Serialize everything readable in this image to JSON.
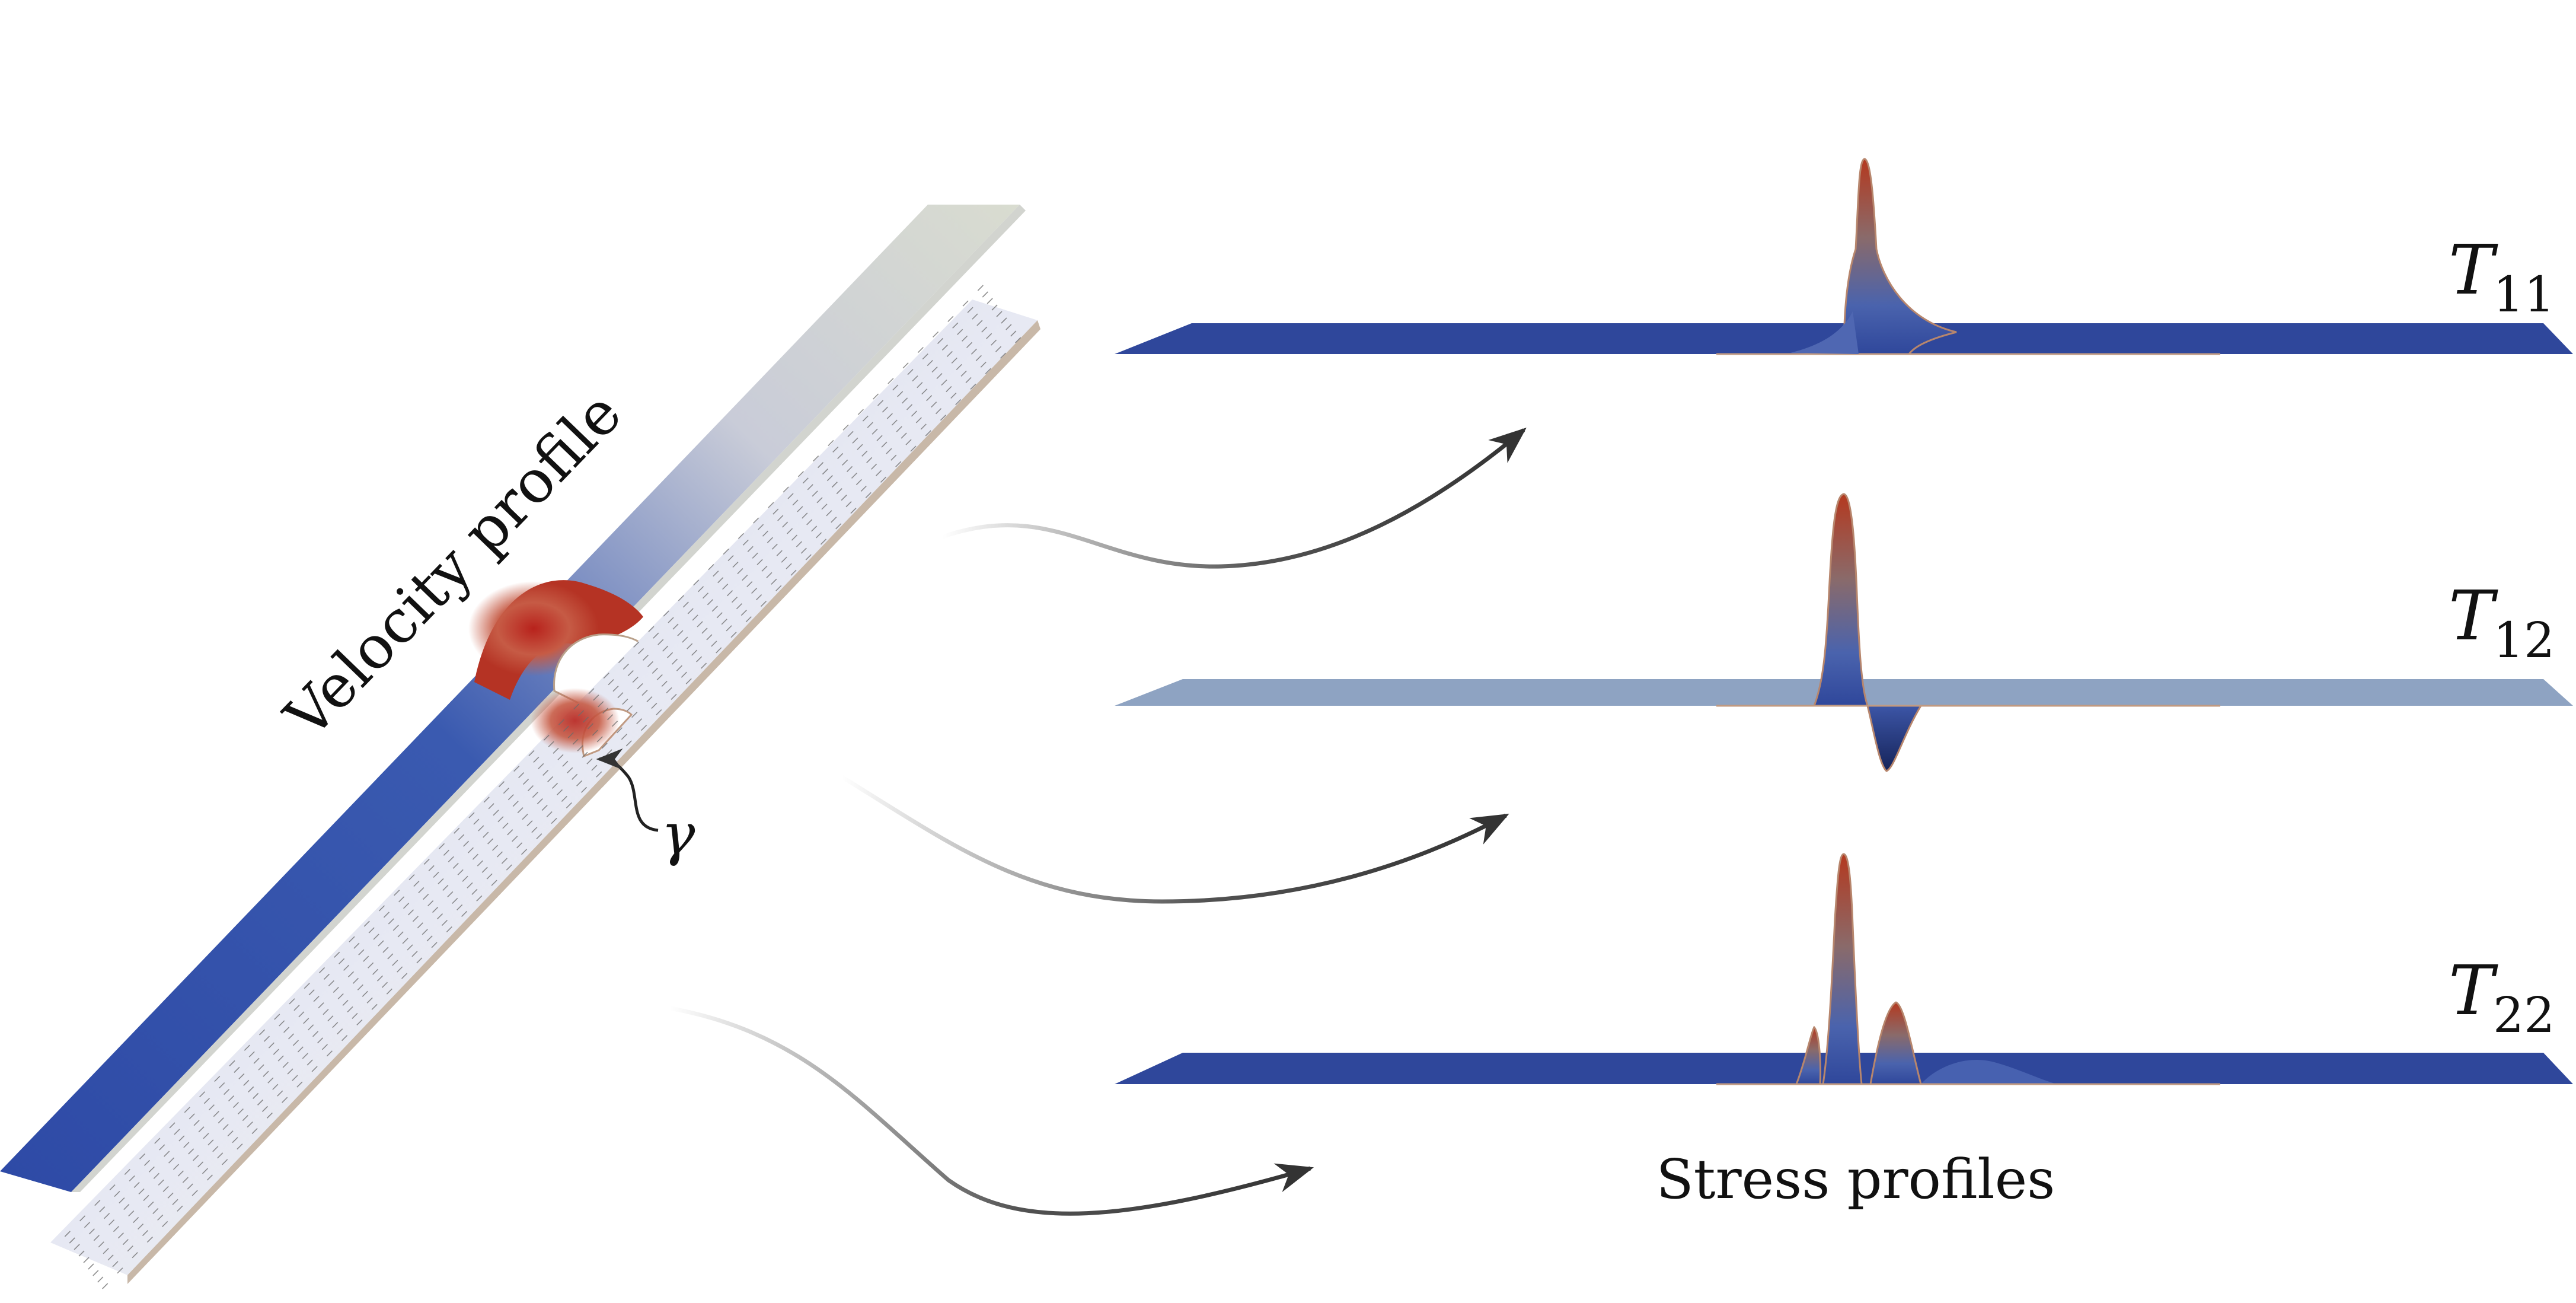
{
  "figure": {
    "velocity_label": "Velocity profile",
    "gamma_label": "γ",
    "stress_caption": "Stress profiles",
    "stress_components": [
      {
        "id": "T11",
        "base": "T",
        "sub": "11"
      },
      {
        "id": "T12",
        "base": "T",
        "sub": "12"
      },
      {
        "id": "T22",
        "base": "T",
        "sub": "22"
      }
    ]
  },
  "colors": {
    "flow_blue": "#2f479b",
    "flow_mid": "#7f97c9",
    "flow_red": "#b83a24",
    "plate_light": "#dfe2ee",
    "arrow": "#333333",
    "t12_plane": "#8ea3c2"
  }
}
